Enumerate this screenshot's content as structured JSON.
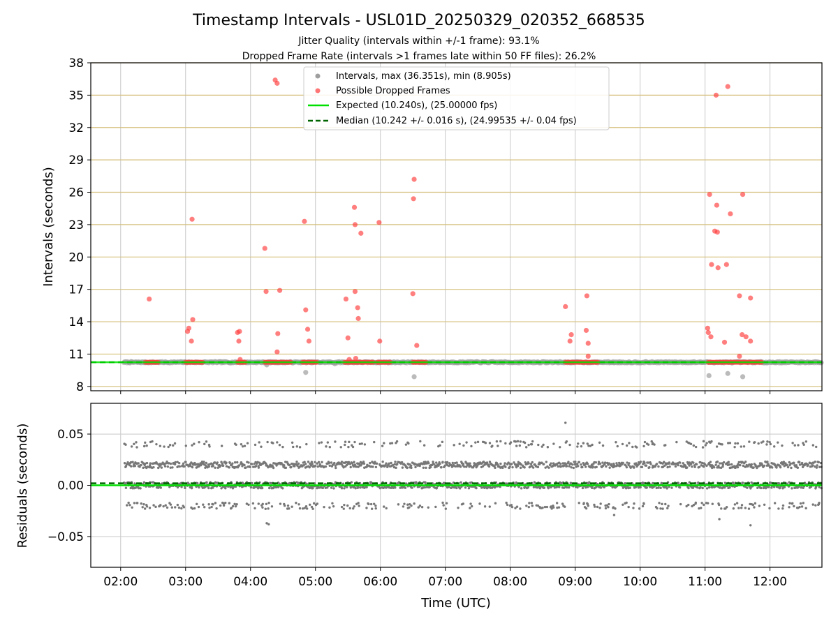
{
  "chart_data": [
    {
      "type": "scatter",
      "title": "Timestamp Intervals - USL01D_20250329_020352_668535",
      "subtitle_lines": [
        "Jitter Quality (intervals within +/-1 frame): 93.1%",
        "Dropped Frame Rate (intervals >1 frames late within 50 FF files): 26.2%"
      ],
      "ylabel": "Intervals (seconds)",
      "ylim": [
        7.6,
        38.0
      ],
      "yticks": [
        8,
        11,
        14,
        17,
        20,
        23,
        26,
        29,
        32,
        35,
        38
      ],
      "ytick_labels": [
        "8",
        "11",
        "14",
        "17",
        "20",
        "23",
        "26",
        "29",
        "32",
        "35",
        "38"
      ],
      "xlim_hours": [
        1.54,
        12.8
      ],
      "legend_position": "top-center",
      "grid": "vertical gray lines at x ticks, horizontal tan lines at y ticks",
      "colors": {
        "intervals": "#9e9e9e",
        "dropped": "#ff3b3b",
        "expected": "#00e000",
        "median": "#006400",
        "hgrid": "#d4bf7a"
      },
      "series": [
        {
          "name": "Intervals, max (36.351s), min (8.905s)",
          "style": "gray-dots",
          "baseline_y": 10.24,
          "baseline_x_range": [
            2.05,
            12.8
          ],
          "points": [
            [
              4.85,
              9.3
            ],
            [
              6.52,
              8.9
            ],
            [
              11.06,
              9.0
            ],
            [
              11.35,
              9.2
            ],
            [
              11.58,
              8.9
            ],
            [
              4.25,
              10.0
            ],
            [
              9.6,
              10.2
            ],
            [
              5.3,
              10.1
            ]
          ]
        },
        {
          "name": "Possible Dropped Frames",
          "style": "red-dots",
          "baseline_y": 10.24,
          "baseline_segments": [
            [
              2.38,
              2.58
            ],
            [
              3.0,
              3.27
            ],
            [
              3.8,
              3.93
            ],
            [
              4.22,
              4.62
            ],
            [
              4.8,
              5.03
            ],
            [
              5.45,
              5.9
            ],
            [
              5.95,
              6.16
            ],
            [
              6.5,
              6.7
            ],
            [
              8.85,
              9.35
            ],
            [
              11.05,
              11.88
            ]
          ],
          "points": [
            [
              2.44,
              16.1
            ],
            [
              3.03,
              13.1
            ],
            [
              3.05,
              13.4
            ],
            [
              3.09,
              12.2
            ],
            [
              3.1,
              23.5
            ],
            [
              3.11,
              14.2
            ],
            [
              3.8,
              13.0
            ],
            [
              3.82,
              12.2
            ],
            [
              3.83,
              13.1
            ],
            [
              3.84,
              10.5
            ],
            [
              4.22,
              20.8
            ],
            [
              4.24,
              16.8
            ],
            [
              4.38,
              36.4
            ],
            [
              4.41,
              36.1
            ],
            [
              4.42,
              12.9
            ],
            [
              4.41,
              11.2
            ],
            [
              4.45,
              16.9
            ],
            [
              4.83,
              23.3
            ],
            [
              4.85,
              15.1
            ],
            [
              4.88,
              13.3
            ],
            [
              4.9,
              12.2
            ],
            [
              5.47,
              16.1
            ],
            [
              5.5,
              12.5
            ],
            [
              5.52,
              10.5
            ],
            [
              5.6,
              24.6
            ],
            [
              5.61,
              16.8
            ],
            [
              5.61,
              23.0
            ],
            [
              5.65,
              15.3
            ],
            [
              5.66,
              14.3
            ],
            [
              5.7,
              22.2
            ],
            [
              5.62,
              10.6
            ],
            [
              5.98,
              23.2
            ],
            [
              5.99,
              12.2
            ],
            [
              6.5,
              16.6
            ],
            [
              6.51,
              25.4
            ],
            [
              6.52,
              27.2
            ],
            [
              6.56,
              11.8
            ],
            [
              8.85,
              15.4
            ],
            [
              8.92,
              12.2
            ],
            [
              8.94,
              12.8
            ],
            [
              9.17,
              13.2
            ],
            [
              9.18,
              16.4
            ],
            [
              9.2,
              12.0
            ],
            [
              9.2,
              10.8
            ],
            [
              11.04,
              13.4
            ],
            [
              11.05,
              13.0
            ],
            [
              11.07,
              25.8
            ],
            [
              11.09,
              12.6
            ],
            [
              11.15,
              22.4
            ],
            [
              11.17,
              35.0
            ],
            [
              11.18,
              24.8
            ],
            [
              11.19,
              22.3
            ],
            [
              11.2,
              19.0
            ],
            [
              11.1,
              19.3
            ],
            [
              11.3,
              12.1
            ],
            [
              11.33,
              19.3
            ],
            [
              11.35,
              35.8
            ],
            [
              11.39,
              24.0
            ],
            [
              11.53,
              16.4
            ],
            [
              11.53,
              10.8
            ],
            [
              11.57,
              12.8
            ],
            [
              11.58,
              25.8
            ],
            [
              11.63,
              12.6
            ],
            [
              11.7,
              16.2
            ],
            [
              11.7,
              12.2
            ]
          ]
        },
        {
          "name": "Expected (10.240s), (25.00000 fps)",
          "style": "solid-line",
          "y": 10.24
        },
        {
          "name": "Median (10.242 +/- 0.016 s), (24.99535 +/- 0.04 fps)",
          "style": "dashed-line",
          "y": 10.242
        }
      ]
    },
    {
      "type": "scatter",
      "ylabel": "Residuals (seconds)",
      "xlabel": "Time (UTC)",
      "ylim": [
        -0.08,
        0.08
      ],
      "yticks": [
        0.05,
        0.0,
        -0.05
      ],
      "ytick_labels": [
        "0.05",
        "0.00",
        "−0.05"
      ],
      "xlim_hours": [
        1.54,
        12.8
      ],
      "xticks": [
        2,
        3,
        4,
        5,
        6,
        7,
        8,
        9,
        10,
        11,
        12
      ],
      "xtick_labels": [
        "02:00",
        "03:00",
        "04:00",
        "05:00",
        "06:00",
        "07:00",
        "08:00",
        "09:00",
        "10:00",
        "11:00",
        "12:00"
      ],
      "grid": "gray lines at x and y ticks",
      "residual_bands": [
        {
          "y": 0.04,
          "density": 0.22
        },
        {
          "y": 0.02,
          "density": 0.9
        },
        {
          "y": 0.0,
          "density": 1.0
        },
        {
          "y": -0.02,
          "density": 0.28
        }
      ],
      "outliers": [
        [
          4.25,
          -0.037
        ],
        [
          4.28,
          -0.038
        ],
        [
          8.85,
          0.061
        ],
        [
          11.22,
          -0.033
        ],
        [
          11.7,
          -0.039
        ],
        [
          9.6,
          -0.029
        ]
      ],
      "residual_x_range": [
        2.05,
        12.8
      ],
      "lines": [
        {
          "style": "solid-line",
          "y": 0.0
        },
        {
          "style": "dashed-line",
          "y": 0.002
        }
      ]
    }
  ]
}
